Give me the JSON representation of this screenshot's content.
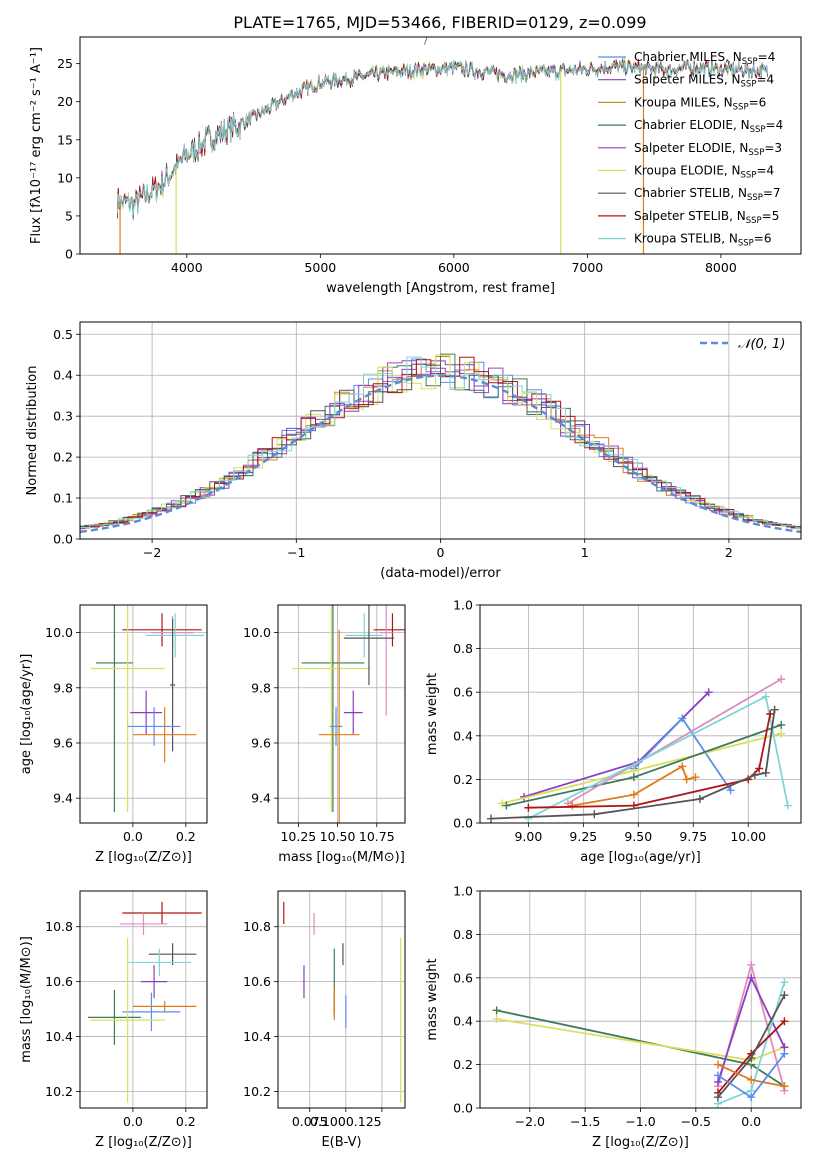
{
  "title": "PLATE=1765, MJD=53466, FIBERID=0129, z=0.099",
  "colors": {
    "chabrier_miles": "#5b8def",
    "salpeter_miles": "#8b3fbf",
    "kroupa_miles": "#e07b1b",
    "chabrier_elodie": "#3d7a5a",
    "salpeter_elodie": "#8b3fbf",
    "kroupa_elodie": "#d8e05b",
    "chabrier_stelib": "#444444",
    "salpeter_stelib": "#b01515",
    "kroupa_stelib": "#7fd6d6",
    "pink": "#e08cc0",
    "gauss": "#5b8bd6"
  },
  "chart_data": [
    {
      "id": "spectrum",
      "type": "line",
      "xlabel": "wavelength [Angstrom, rest frame]",
      "ylabel": "Flux [fλ10⁻¹⁷ erg cm⁻² s⁻¹ A⁻¹]",
      "xlim": [
        3200,
        8600
      ],
      "ylim": [
        0,
        28.5
      ],
      "xticks": [
        4000,
        5000,
        6000,
        7000,
        8000
      ],
      "yticks": [
        0,
        5,
        10,
        15,
        20,
        25
      ],
      "legend_position": "right",
      "legend": [
        {
          "label": "Chabrier MILES, N_SSP=4",
          "color": "#5b8def"
        },
        {
          "label": "Salpeter MILES, N_SSP=4",
          "color": "#8b3fbf"
        },
        {
          "label": "Kroupa MILES, N_SSP=6",
          "color": "#c8902a"
        },
        {
          "label": "Chabrier ELODIE, N_SSP=4",
          "color": "#3d7a5a"
        },
        {
          "label": "Salpeter ELODIE, N_SSP=3",
          "color": "#9b40c0"
        },
        {
          "label": "Kroupa ELODIE, N_SSP=4",
          "color": "#d8e05b"
        },
        {
          "label": "Chabrier STELIB, N_SSP=7",
          "color": "#555555"
        },
        {
          "label": "Salpeter STELIB, N_SSP=5",
          "color": "#b01515"
        },
        {
          "label": "Kroupa STELIB, N_SSP=6",
          "color": "#7fd6d6"
        }
      ],
      "continuum": [
        [
          3480,
          7
        ],
        [
          3600,
          6.5
        ],
        [
          3800,
          9
        ],
        [
          4000,
          13
        ],
        [
          4200,
          15.5
        ],
        [
          4400,
          17
        ],
        [
          4600,
          19
        ],
        [
          4800,
          21
        ],
        [
          5000,
          22.5
        ],
        [
          5200,
          23
        ],
        [
          5400,
          23.5
        ],
        [
          5600,
          24
        ],
        [
          5800,
          24.2
        ],
        [
          6000,
          24.5
        ],
        [
          6200,
          24
        ],
        [
          6400,
          23.5
        ],
        [
          6600,
          23.8
        ],
        [
          6800,
          24
        ],
        [
          7000,
          24.3
        ],
        [
          7200,
          24.6
        ],
        [
          7400,
          24.4
        ],
        [
          7600,
          24.2
        ],
        [
          7800,
          24.5
        ],
        [
          8000,
          24.3
        ],
        [
          8200,
          24.1
        ],
        [
          8350,
          24.0
        ]
      ]
    },
    {
      "id": "residual_hist",
      "type": "bar",
      "xlabel": "(data-model)/error",
      "ylabel": "Normed distribution",
      "xlim": [
        -2.5,
        2.5
      ],
      "ylim": [
        0,
        0.53
      ],
      "xticks": [
        -2,
        -1,
        0,
        1,
        2
      ],
      "yticks": [
        0.0,
        0.1,
        0.2,
        0.3,
        0.4,
        0.5
      ],
      "legend_position": "top-right",
      "legend": [
        {
          "label": "𝒩(0, 1)",
          "color": "#5b8bd6"
        }
      ]
    },
    {
      "id": "age_vs_Z",
      "type": "scatter",
      "xlabel": "Z [log₁₀(Z/Z⊙)]",
      "ylabel": "age  [log₁₀(age/yr)]",
      "xlim": [
        -0.2,
        0.28
      ],
      "ylim": [
        9.31,
        10.1
      ],
      "xticks": [
        0.0,
        0.2
      ],
      "yticks": [
        9.4,
        9.6,
        9.8,
        10.0
      ],
      "points": [
        {
          "x": 0.11,
          "y": 10.01,
          "xerr": 0.15,
          "yerr": 0.06,
          "color": "#b01515"
        },
        {
          "x": 0.15,
          "y": 10.0,
          "xerr": 0.08,
          "yerr": 0.06,
          "color": "#e08cc0"
        },
        {
          "x": 0.16,
          "y": 9.99,
          "xerr": 0.11,
          "yerr": 0.08,
          "color": "#7fd6d6"
        },
        {
          "x": -0.07,
          "y": 9.89,
          "xerr": 0.07,
          "yerr": 0.54,
          "color": "#3d7a5a"
        },
        {
          "x": -0.02,
          "y": 9.87,
          "xerr": 0.14,
          "yerr": 0.52,
          "color": "#d8e05b"
        },
        {
          "x": 0.05,
          "y": 9.71,
          "xerr": 0.06,
          "yerr": 0.08,
          "color": "#8b3fbf"
        },
        {
          "x": 0.15,
          "y": 9.81,
          "xerr": 0.01,
          "yerr": 0.24,
          "color": "#555555"
        },
        {
          "x": 0.08,
          "y": 9.66,
          "xerr": 0.1,
          "yerr": 0.07,
          "color": "#5b8def"
        },
        {
          "x": 0.12,
          "y": 9.63,
          "xerr": 0.12,
          "yerr": 0.1,
          "color": "#e07b1b"
        }
      ]
    },
    {
      "id": "age_vs_mass",
      "type": "scatter",
      "xlabel": "mass [log₁₀(M/M⊙)]",
      "xlim": [
        10.12,
        10.93
      ],
      "ylim": [
        9.31,
        10.1
      ],
      "xticks": [
        10.25,
        10.5,
        10.75
      ],
      "yticks": [
        9.4,
        9.6,
        9.8,
        10.0
      ],
      "points": [
        {
          "x": 10.85,
          "y": 10.01,
          "xerr": 0.12,
          "yerr": 0.06,
          "color": "#b01515"
        },
        {
          "x": 10.81,
          "y": 10.0,
          "xerr": 0.04,
          "yerr": 0.3,
          "color": "#e08cc0"
        },
        {
          "x": 10.67,
          "y": 9.99,
          "xerr": 0.12,
          "yerr": 0.08,
          "color": "#7fd6d6"
        },
        {
          "x": 10.47,
          "y": 9.89,
          "xerr": 0.2,
          "yerr": 0.54,
          "color": "#3d7a5a"
        },
        {
          "x": 10.46,
          "y": 9.87,
          "xerr": 0.25,
          "yerr": 0.52,
          "color": "#d8e05b"
        },
        {
          "x": 10.6,
          "y": 9.71,
          "xerr": 0.06,
          "yerr": 0.08,
          "color": "#8b3fbf"
        },
        {
          "x": 10.7,
          "y": 9.98,
          "xerr": 0.16,
          "yerr": 0.17,
          "color": "#555555"
        },
        {
          "x": 10.49,
          "y": 9.66,
          "xerr": 0.04,
          "yerr": 0.07,
          "color": "#5b8def"
        },
        {
          "x": 10.51,
          "y": 9.63,
          "xerr": 0.13,
          "yerr": 0.38,
          "color": "#e07b1b"
        }
      ]
    },
    {
      "id": "weight_vs_age",
      "type": "line",
      "xlabel": "age  [log₁₀(age/yr)]",
      "ylabel": "mass weight",
      "xlim": [
        8.78,
        10.24
      ],
      "ylim": [
        0,
        1
      ],
      "xticks": [
        9.0,
        9.25,
        9.5,
        9.75,
        10.0
      ],
      "yticks": [
        0.0,
        0.2,
        0.4,
        0.6,
        0.8,
        1.0
      ],
      "series": [
        {
          "color": "#8b3fbf",
          "x": [
            8.98,
            9.5,
            9.82
          ],
          "y": [
            0.12,
            0.28,
            0.6
          ]
        },
        {
          "color": "#5b8def",
          "x": [
            9.48,
            9.7,
            9.92
          ],
          "y": [
            0.25,
            0.48,
            0.15
          ]
        },
        {
          "color": "#d8e05b",
          "x": [
            8.88,
            9.48,
            10.15
          ],
          "y": [
            0.09,
            0.24,
            0.41
          ]
        },
        {
          "color": "#3d7a5a",
          "x": [
            8.9,
            9.48,
            10.15
          ],
          "y": [
            0.08,
            0.21,
            0.45
          ]
        },
        {
          "color": "#e08cc0",
          "x": [
            9.18,
            10.15
          ],
          "y": [
            0.09,
            0.66
          ]
        },
        {
          "color": "#7fd6d6",
          "x": [
            9.0,
            10.08,
            10.18
          ],
          "y": [
            0.02,
            0.58,
            0.08
          ]
        },
        {
          "color": "#e07b1b",
          "x": [
            9.2,
            9.48,
            9.7,
            9.72,
            9.76
          ],
          "y": [
            0.08,
            0.13,
            0.26,
            0.2,
            0.21
          ]
        },
        {
          "color": "#b01515",
          "x": [
            9.0,
            9.48,
            10.0,
            10.05,
            10.1
          ],
          "y": [
            0.07,
            0.08,
            0.2,
            0.25,
            0.5
          ]
        },
        {
          "color": "#555555",
          "x": [
            8.83,
            9.3,
            9.78,
            10.03,
            10.08,
            10.12
          ],
          "y": [
            0.02,
            0.04,
            0.11,
            0.22,
            0.23,
            0.52
          ]
        }
      ]
    },
    {
      "id": "mass_vs_Z",
      "type": "scatter",
      "xlabel": "Z [log₁₀(Z/Z⊙)]",
      "ylabel": "mass [log₁₀(M/M⊙)]",
      "xlim": [
        -0.2,
        0.28
      ],
      "ylim": [
        10.14,
        10.93
      ],
      "xticks": [
        0.0,
        0.2
      ],
      "yticks": [
        10.2,
        10.4,
        10.6,
        10.8
      ],
      "points": [
        {
          "x": 0.11,
          "y": 10.85,
          "xerr": 0.15,
          "yerr": 0.04,
          "color": "#b01515"
        },
        {
          "x": 0.04,
          "y": 10.81,
          "xerr": 0.09,
          "yerr": 0.04,
          "color": "#e08cc0"
        },
        {
          "x": 0.15,
          "y": 10.7,
          "xerr": 0.09,
          "yerr": 0.04,
          "color": "#555555"
        },
        {
          "x": 0.1,
          "y": 10.67,
          "xerr": 0.12,
          "yerr": 0.05,
          "color": "#7fd6d6"
        },
        {
          "x": 0.08,
          "y": 10.6,
          "xerr": 0.05,
          "yerr": 0.06,
          "color": "#8b3fbf"
        },
        {
          "x": 0.12,
          "y": 10.51,
          "xerr": 0.12,
          "yerr": 0.02,
          "color": "#e07b1b"
        },
        {
          "x": 0.07,
          "y": 10.49,
          "xerr": 0.11,
          "yerr": 0.07,
          "color": "#5b8def"
        },
        {
          "x": -0.07,
          "y": 10.47,
          "xerr": 0.1,
          "yerr": 0.1,
          "color": "#3d7a5a"
        },
        {
          "x": -0.02,
          "y": 10.46,
          "xerr": 0.14,
          "yerr": 0.3,
          "color": "#d8e05b"
        }
      ]
    },
    {
      "id": "mass_vs_ebv",
      "type": "scatter",
      "xlabel": "E(B-V)",
      "xlim": [
        0.053,
        0.141
      ],
      "ylim": [
        10.14,
        10.93
      ],
      "xticks": [
        0.075,
        0.1,
        0.125
      ],
      "tick_labels": [
        "0.075",
        "0.1000.125",
        ""
      ],
      "yticks": [
        10.2,
        10.4,
        10.6,
        10.8
      ],
      "points": [
        {
          "x": 0.057,
          "y": 10.85,
          "yerr": 0.04,
          "color": "#b01515"
        },
        {
          "x": 0.078,
          "y": 10.81,
          "yerr": 0.04,
          "color": "#e08cc0"
        },
        {
          "x": 0.071,
          "y": 10.6,
          "yerr": 0.06,
          "color": "#8b3fbf"
        },
        {
          "x": 0.092,
          "y": 10.6,
          "yerr": 0.12,
          "color": "#3d7a5a"
        },
        {
          "x": 0.092,
          "y": 10.52,
          "yerr": 0.06,
          "color": "#e07b1b"
        },
        {
          "x": 0.098,
          "y": 10.7,
          "yerr": 0.04,
          "color": "#555555"
        },
        {
          "x": 0.1,
          "y": 10.49,
          "yerr": 0.06,
          "color": "#5b8def"
        },
        {
          "x": 0.138,
          "y": 10.46,
          "yerr": 0.3,
          "color": "#d8e05b"
        }
      ]
    },
    {
      "id": "weight_vs_Z",
      "type": "line",
      "xlabel": "Z [log₁₀(Z/Z⊙)]",
      "ylabel": "mass weight",
      "xlim": [
        -2.45,
        0.45
      ],
      "ylim": [
        0,
        1
      ],
      "xticks": [
        -2.0,
        -1.5,
        -1.0,
        -0.5,
        0.0
      ],
      "yticks": [
        0.0,
        0.2,
        0.4,
        0.6,
        0.8,
        1.0
      ],
      "series": [
        {
          "color": "#3d7a5a",
          "x": [
            -2.3,
            0.0,
            0.3
          ],
          "y": [
            0.45,
            0.2,
            0.1
          ]
        },
        {
          "color": "#d8e05b",
          "x": [
            -2.3,
            0.0,
            0.3
          ],
          "y": [
            0.41,
            0.22,
            0.28
          ]
        },
        {
          "color": "#e08cc0",
          "x": [
            -0.3,
            0.0,
            0.3
          ],
          "y": [
            0.1,
            0.66,
            0.08
          ]
        },
        {
          "color": "#8b3fbf",
          "x": [
            -0.3,
            0.0,
            0.3
          ],
          "y": [
            0.12,
            0.6,
            0.28
          ]
        },
        {
          "color": "#7fd6d6",
          "x": [
            -0.3,
            0.0,
            0.3
          ],
          "y": [
            0.02,
            0.08,
            0.58
          ]
        },
        {
          "color": "#b01515",
          "x": [
            -0.3,
            0.0,
            0.3
          ],
          "y": [
            0.07,
            0.25,
            0.4
          ]
        },
        {
          "color": "#555555",
          "x": [
            -0.3,
            0.0,
            0.3
          ],
          "y": [
            0.05,
            0.23,
            0.52
          ]
        },
        {
          "color": "#e07b1b",
          "x": [
            -0.3,
            0.0,
            0.3
          ],
          "y": [
            0.2,
            0.13,
            0.1
          ]
        },
        {
          "color": "#5b8def",
          "x": [
            -0.3,
            0.0,
            0.3
          ],
          "y": [
            0.15,
            0.05,
            0.25
          ]
        }
      ]
    }
  ]
}
